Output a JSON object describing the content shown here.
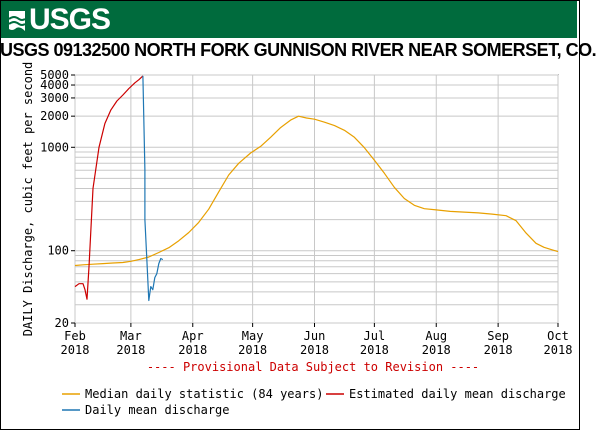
{
  "banner": {
    "logo_text": "USGS"
  },
  "chart_data": {
    "type": "line",
    "title": "USGS 09132500 NORTH FORK GUNNISON RIVER NEAR SOMERSET, CO.",
    "ylabel": "DAILY Discharge, cubic feet per second",
    "xlabel": "",
    "y_scale": "log",
    "ylim": [
      20,
      5000
    ],
    "y_ticks": [
      20,
      100,
      1000,
      2000,
      3000,
      4000,
      5000
    ],
    "x_range": [
      "2018-02-01",
      "2018-10-01"
    ],
    "x_tick_labels": [
      {
        "date": "2018-02-01",
        "month": "Feb",
        "year": "2018"
      },
      {
        "date": "2018-03-01",
        "month": "Mar",
        "year": "2018"
      },
      {
        "date": "2018-04-01",
        "month": "Apr",
        "year": "2018"
      },
      {
        "date": "2018-05-01",
        "month": "May",
        "year": "2018"
      },
      {
        "date": "2018-06-01",
        "month": "Jun",
        "year": "2018"
      },
      {
        "date": "2018-07-01",
        "month": "Jul",
        "year": "2018"
      },
      {
        "date": "2018-08-01",
        "month": "Aug",
        "year": "2018"
      },
      {
        "date": "2018-09-01",
        "month": "Sep",
        "year": "2018"
      },
      {
        "date": "2018-10-01",
        "month": "Oct",
        "year": "2018"
      }
    ],
    "grid": true,
    "legend_position": "bottom",
    "annotation": "---- Provisional Data Subject to Revision ----",
    "series": [
      {
        "name": "Median daily statistic (84 years)",
        "color": "#e8a000",
        "points": [
          [
            "2018-02-01",
            72
          ],
          [
            "2018-02-05",
            73
          ],
          [
            "2018-02-10",
            74
          ],
          [
            "2018-02-15",
            75
          ],
          [
            "2018-02-20",
            76
          ],
          [
            "2018-02-25",
            77
          ],
          [
            "2018-03-01",
            79
          ],
          [
            "2018-03-05",
            82
          ],
          [
            "2018-03-10",
            87
          ],
          [
            "2018-03-15",
            96
          ],
          [
            "2018-03-20",
            107
          ],
          [
            "2018-03-25",
            125
          ],
          [
            "2018-03-30",
            150
          ],
          [
            "2018-04-04",
            188
          ],
          [
            "2018-04-09",
            252
          ],
          [
            "2018-04-14",
            370
          ],
          [
            "2018-04-19",
            540
          ],
          [
            "2018-04-24",
            700
          ],
          [
            "2018-04-30",
            880
          ],
          [
            "2018-05-05",
            1020
          ],
          [
            "2018-05-10",
            1250
          ],
          [
            "2018-05-15",
            1550
          ],
          [
            "2018-05-20",
            1830
          ],
          [
            "2018-05-24",
            2000
          ],
          [
            "2018-05-28",
            1920
          ],
          [
            "2018-06-01",
            1870
          ],
          [
            "2018-06-06",
            1750
          ],
          [
            "2018-06-11",
            1620
          ],
          [
            "2018-06-16",
            1460
          ],
          [
            "2018-06-21",
            1250
          ],
          [
            "2018-06-26",
            990
          ],
          [
            "2018-07-01",
            750
          ],
          [
            "2018-07-06",
            560
          ],
          [
            "2018-07-11",
            410
          ],
          [
            "2018-07-16",
            320
          ],
          [
            "2018-07-21",
            275
          ],
          [
            "2018-07-26",
            255
          ],
          [
            "2018-08-01",
            248
          ],
          [
            "2018-08-08",
            240
          ],
          [
            "2018-08-15",
            236
          ],
          [
            "2018-08-22",
            232
          ],
          [
            "2018-08-29",
            226
          ],
          [
            "2018-09-05",
            218
          ],
          [
            "2018-09-10",
            195
          ],
          [
            "2018-09-15",
            148
          ],
          [
            "2018-09-20",
            118
          ],
          [
            "2018-09-24",
            108
          ],
          [
            "2018-09-28",
            102
          ],
          [
            "2018-10-01",
            98
          ]
        ]
      },
      {
        "name": "Estimated daily mean discharge",
        "color": "#cc0000",
        "points": [
          [
            "2018-02-01",
            45
          ],
          [
            "2018-02-03",
            48
          ],
          [
            "2018-02-05",
            48
          ],
          [
            "2018-02-06",
            42
          ],
          [
            "2018-02-07",
            34
          ],
          [
            "2018-02-08",
            70
          ],
          [
            "2018-02-10",
            400
          ],
          [
            "2018-02-13",
            1000
          ],
          [
            "2018-02-16",
            1700
          ],
          [
            "2018-02-19",
            2300
          ],
          [
            "2018-02-22",
            2800
          ],
          [
            "2018-02-25",
            3200
          ],
          [
            "2018-02-28",
            3700
          ],
          [
            "2018-03-03",
            4200
          ],
          [
            "2018-03-05",
            4500
          ],
          [
            "2018-03-07",
            4900
          ]
        ]
      },
      {
        "name": "Daily mean discharge",
        "color": "#1f77b4",
        "points": [
          [
            "2018-03-07",
            4900
          ],
          [
            "2018-03-08",
            600
          ],
          [
            "2018-03-08",
            200
          ],
          [
            "2018-03-09",
            80
          ],
          [
            "2018-03-10",
            33
          ],
          [
            "2018-03-11",
            45
          ],
          [
            "2018-03-12",
            42
          ],
          [
            "2018-03-13",
            55
          ],
          [
            "2018-03-14",
            60
          ],
          [
            "2018-03-15",
            75
          ],
          [
            "2018-03-16",
            84
          ],
          [
            "2018-03-17",
            82
          ]
        ]
      }
    ]
  }
}
